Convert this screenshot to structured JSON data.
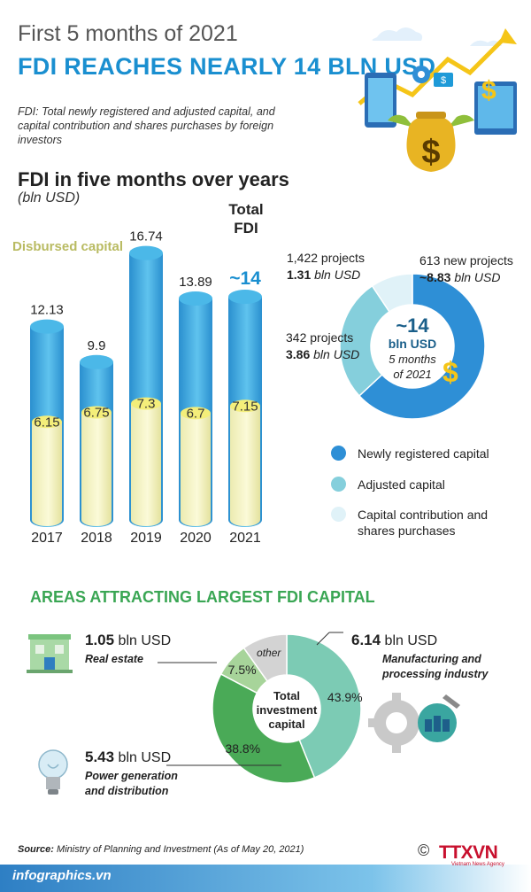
{
  "header": {
    "sup_title": "First 5 months of 2021",
    "main_title": "FDI REACHES NEARLY 14 BLN USD",
    "definition": "FDI: Total newly registered and adjusted capital, and capital contribution and shares purchases by foreign investors"
  },
  "colors": {
    "accent_blue": "#1a8fd0",
    "bar_blue": "#3aaee4",
    "bar_cream": "#f6f3b4",
    "green": "#3aa654",
    "donut_dark": "#2e8fd6",
    "donut_mid": "#85cfdc",
    "donut_light": "#e0f2f8"
  },
  "chart_data": [
    {
      "type": "bar",
      "title": "FDI in five months over years",
      "subtitle": "(bln USD)",
      "categories": [
        "2017",
        "2018",
        "2019",
        "2020",
        "2021"
      ],
      "series": [
        {
          "name": "Total FDI",
          "values": [
            12.13,
            9.9,
            16.74,
            13.89,
            14
          ],
          "labels": [
            "12.13",
            "9.9",
            "16.74",
            "13.89",
            "~14"
          ]
        },
        {
          "name": "Disbursed capital",
          "values": [
            6.15,
            6.75,
            7.3,
            6.7,
            7.15
          ],
          "labels": [
            "6.15",
            "6.75",
            "7.3",
            "6.7",
            "7.15"
          ]
        }
      ],
      "legend_labels": {
        "total": "Total FDI",
        "disbursed": "Disbursed capital"
      }
    },
    {
      "type": "pie",
      "center": {
        "value": "~14",
        "unit": "bln USD",
        "period": "5 months",
        "year": "of 2021"
      },
      "slices": [
        {
          "name": "Newly registered capital",
          "value": 8.83,
          "projects": "613 new projects",
          "amount_prefix": "~8.83",
          "amount_suffix": " bln USD"
        },
        {
          "name": "Adjusted capital",
          "value": 3.86,
          "projects": "342 projects",
          "amount_prefix": "3.86",
          "amount_suffix": " bln USD"
        },
        {
          "name": "Capital contribution and shares purchases",
          "value": 1.31,
          "projects": "1,422 projects",
          "amount_prefix": "1.31",
          "amount_suffix": " bln USD"
        }
      ]
    },
    {
      "type": "pie",
      "title": "AREAS ATTRACTING LARGEST FDI CAPITAL",
      "center_label": "Total investment capital",
      "slices": [
        {
          "name": "Manufacturing and processing industry",
          "value": 43.9,
          "label": "43.9%",
          "amount_bold": "6.14",
          "amount_unit": " bln USD"
        },
        {
          "name": "Power generation and distribution",
          "value": 38.8,
          "label": "38.8%",
          "amount_bold": "5.43",
          "amount_unit": " bln USD"
        },
        {
          "name": "Real estate",
          "value": 7.5,
          "label": "7.5%",
          "amount_bold": "1.05",
          "amount_unit": " bln USD"
        },
        {
          "name": "other",
          "value": 9.8,
          "label": "other"
        }
      ]
    }
  ],
  "source": {
    "label": "Source:",
    "text": "Ministry of Planning and Investment  (As of May 20, 2021)"
  },
  "footer": {
    "site": "infographics.vn",
    "agency": "TTXVN",
    "agency_sub": "Vietnam News Agency",
    "copyright": "©"
  }
}
